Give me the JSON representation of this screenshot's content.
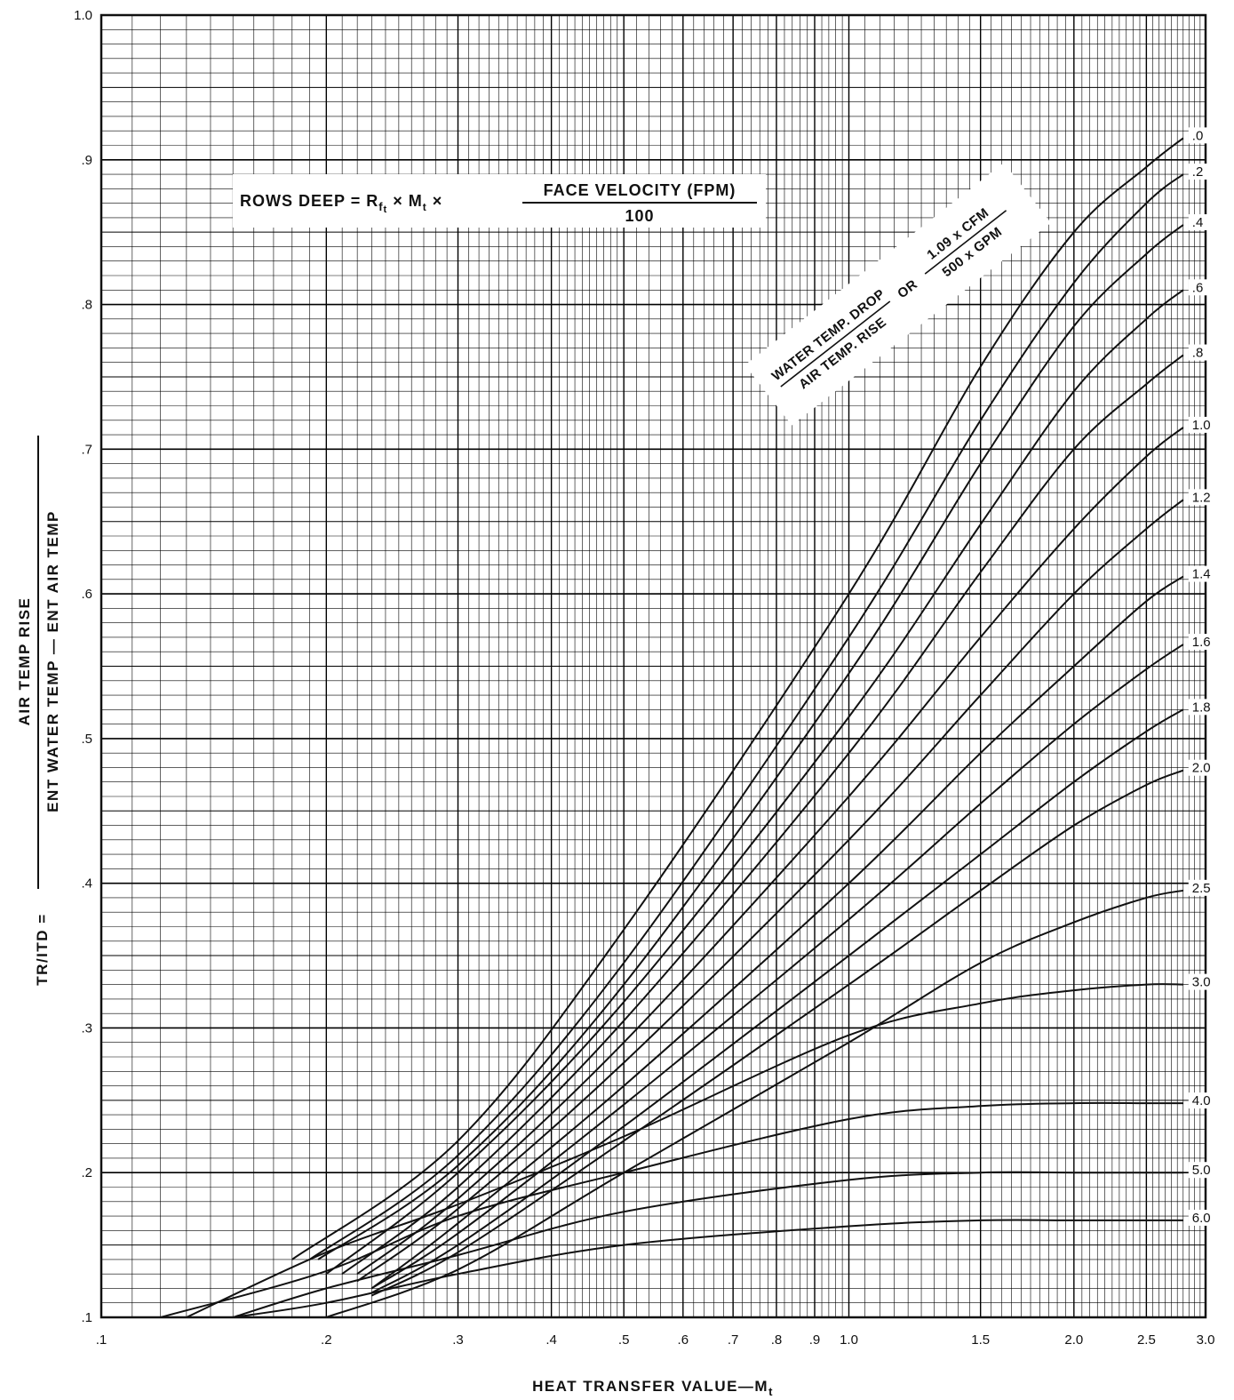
{
  "chart_data": {
    "type": "line",
    "title": "",
    "formula": {
      "lhs": "ROWS DEEP = R",
      "sub_f": "f",
      "sub_t": "t",
      "times1": " × M",
      "sub_t2": "t",
      "times2": " ×",
      "numerator": "FACE VELOCITY (FPM)",
      "denominator": "100"
    },
    "ratio_label": {
      "left_top": "WATER TEMP. DROP",
      "left_bottom": "AIR TEMP. RISE",
      "or": "OR",
      "right_top": "1.09 x CFM",
      "right_bottom": "500 x GPM"
    },
    "xlabel": "HEAT TRANSFER VALUE—M",
    "xlabel_sub": "t",
    "ylabel": {
      "prefix": "TR/ITD =",
      "numerator": "AIR TEMP RISE",
      "denominator": "ENT WATER TEMP — ENT AIR TEMP"
    },
    "x_scale": "log",
    "xlim": [
      0.1,
      3.0
    ],
    "ylim": [
      0.1,
      1.0
    ],
    "x_ticks": [
      {
        "v": 0.1,
        "label": ".1"
      },
      {
        "v": 0.2,
        "label": ".2"
      },
      {
        "v": 0.3,
        "label": ".3"
      },
      {
        "v": 0.4,
        "label": ".4"
      },
      {
        "v": 0.5,
        "label": ".5"
      },
      {
        "v": 0.6,
        "label": ".6"
      },
      {
        "v": 0.7,
        "label": ".7"
      },
      {
        "v": 0.8,
        "label": ".8"
      },
      {
        "v": 0.9,
        "label": ".9"
      },
      {
        "v": 1.0,
        "label": "1.0"
      },
      {
        "v": 1.5,
        "label": "1.5"
      },
      {
        "v": 2.0,
        "label": "2.0"
      },
      {
        "v": 2.5,
        "label": "2.5"
      },
      {
        "v": 3.0,
        "label": "3.0"
      }
    ],
    "y_ticks": [
      {
        "v": 0.1,
        "label": ".1"
      },
      {
        "v": 0.2,
        "label": ".2"
      },
      {
        "v": 0.3,
        "label": ".3"
      },
      {
        "v": 0.4,
        "label": ".4"
      },
      {
        "v": 0.5,
        "label": ".5"
      },
      {
        "v": 0.6,
        "label": ".6"
      },
      {
        "v": 0.7,
        "label": ".7"
      },
      {
        "v": 0.8,
        "label": ".8"
      },
      {
        "v": 0.9,
        "label": ".9"
      },
      {
        "v": 1.0,
        "label": "1.0"
      }
    ],
    "grid": true,
    "series": [
      {
        "name": ".0",
        "x": [
          0.18,
          0.3,
          0.5,
          1.0,
          1.5,
          2.0,
          2.5,
          2.8
        ],
        "y": [
          0.14,
          0.222,
          0.368,
          0.6,
          0.757,
          0.85,
          0.895,
          0.915
        ]
      },
      {
        "name": ".2",
        "x": [
          0.19,
          0.3,
          0.5,
          1.0,
          1.5,
          2.0,
          2.5,
          2.8
        ],
        "y": [
          0.14,
          0.212,
          0.345,
          0.57,
          0.72,
          0.815,
          0.87,
          0.89
        ]
      },
      {
        "name": ".4",
        "x": [
          0.195,
          0.3,
          0.5,
          1.0,
          1.5,
          2.0,
          2.5,
          2.8
        ],
        "y": [
          0.14,
          0.205,
          0.33,
          0.545,
          0.69,
          0.785,
          0.835,
          0.855
        ]
      },
      {
        "name": ".6",
        "x": [
          0.2,
          0.3,
          0.5,
          1.0,
          1.5,
          2.0,
          2.5,
          2.8
        ],
        "y": [
          0.13,
          0.2,
          0.318,
          0.515,
          0.648,
          0.74,
          0.79,
          0.81
        ]
      },
      {
        "name": ".8",
        "x": [
          0.21,
          0.3,
          0.5,
          1.0,
          1.5,
          2.0,
          2.5,
          2.8
        ],
        "y": [
          0.13,
          0.19,
          0.305,
          0.49,
          0.615,
          0.7,
          0.745,
          0.765
        ]
      },
      {
        "name": "1.0",
        "x": [
          0.22,
          0.3,
          0.5,
          1.0,
          1.5,
          2.0,
          2.5,
          2.8
        ],
        "y": [
          0.13,
          0.182,
          0.29,
          0.46,
          0.57,
          0.645,
          0.695,
          0.715
        ]
      },
      {
        "name": "1.2",
        "x": [
          0.22,
          0.3,
          0.5,
          1.0,
          1.5,
          2.0,
          2.5,
          2.8
        ],
        "y": [
          0.125,
          0.175,
          0.276,
          0.43,
          0.53,
          0.6,
          0.645,
          0.665
        ]
      },
      {
        "name": "1.4",
        "x": [
          0.23,
          0.3,
          0.5,
          1.0,
          1.5,
          2.0,
          2.5,
          2.8
        ],
        "y": [
          0.12,
          0.165,
          0.26,
          0.4,
          0.49,
          0.55,
          0.595,
          0.612
        ]
      },
      {
        "name": "1.6",
        "x": [
          0.23,
          0.3,
          0.5,
          1.0,
          1.5,
          2.0,
          2.5,
          2.8
        ],
        "y": [
          0.12,
          0.158,
          0.247,
          0.375,
          0.455,
          0.51,
          0.548,
          0.565
        ]
      },
      {
        "name": "1.8",
        "x": [
          0.23,
          0.3,
          0.5,
          1.0,
          1.5,
          2.0,
          2.5,
          2.8
        ],
        "y": [
          0.117,
          0.15,
          0.232,
          0.35,
          0.42,
          0.47,
          0.505,
          0.52
        ]
      },
      {
        "name": "2.0",
        "x": [
          0.23,
          0.3,
          0.5,
          1.0,
          1.5,
          2.0,
          2.5,
          2.8
        ],
        "y": [
          0.115,
          0.145,
          0.222,
          0.33,
          0.395,
          0.44,
          0.468,
          0.478
        ]
      },
      {
        "name": "2.5",
        "x": [
          0.2,
          0.3,
          0.5,
          1.0,
          1.5,
          2.0,
          2.5,
          2.8
        ],
        "y": [
          0.1,
          0.133,
          0.2,
          0.29,
          0.345,
          0.373,
          0.39,
          0.395
        ]
      },
      {
        "name": "3.0",
        "x": [
          0.13,
          0.2,
          0.3,
          0.5,
          1.0,
          1.5,
          2.0,
          2.5,
          2.8
        ],
        "y": [
          0.1,
          0.145,
          0.178,
          0.225,
          0.295,
          0.317,
          0.326,
          0.33,
          0.33
        ]
      },
      {
        "name": "4.0",
        "x": [
          0.12,
          0.2,
          0.3,
          0.5,
          1.0,
          1.5,
          2.0,
          2.5,
          2.8
        ],
        "y": [
          0.1,
          0.132,
          0.17,
          0.2,
          0.237,
          0.246,
          0.248,
          0.248,
          0.248
        ]
      },
      {
        "name": "5.0",
        "x": [
          0.15,
          0.2,
          0.3,
          0.5,
          1.0,
          1.5,
          2.0,
          2.5,
          2.8
        ],
        "y": [
          0.1,
          0.12,
          0.143,
          0.173,
          0.195,
          0.2,
          0.2,
          0.2,
          0.2
        ]
      },
      {
        "name": "6.0",
        "x": [
          0.15,
          0.2,
          0.3,
          0.5,
          1.0,
          1.5,
          2.0,
          2.5,
          2.8
        ],
        "y": [
          0.1,
          0.11,
          0.13,
          0.15,
          0.163,
          0.167,
          0.167,
          0.167,
          0.167
        ]
      }
    ]
  }
}
